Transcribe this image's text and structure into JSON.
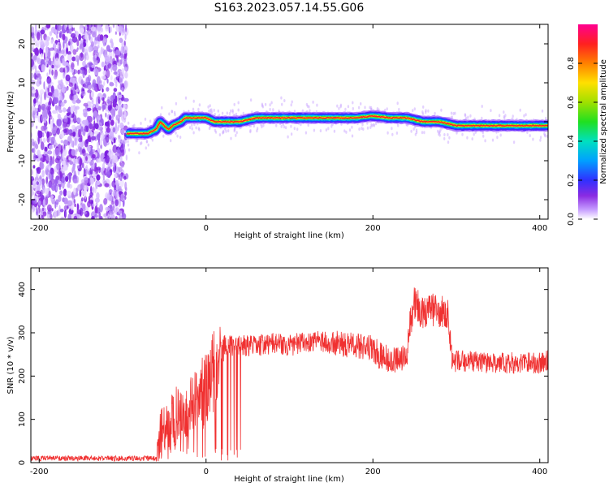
{
  "title": "S163.2023.057.14.55.G06",
  "colors": {
    "snr_line": "#f03030",
    "spectrum_noise": "#8a2be2",
    "axis": "#000000"
  },
  "colorbar": {
    "label": "Normalized spectral amplitude",
    "ticks": [
      "0.0",
      "0.2",
      "0.4",
      "0.6",
      "0.8"
    ],
    "tick_values": [
      0.0,
      0.2,
      0.4,
      0.6,
      0.8
    ],
    "range": [
      0,
      1
    ]
  },
  "chart_data": [
    {
      "type": "heatmap",
      "xlabel": "Height of straight line (km)",
      "ylabel": "Frequency (Hz)",
      "xlim": [
        -210,
        410
      ],
      "ylim": [
        -25,
        25
      ],
      "xticks": [
        -200,
        0,
        200,
        400
      ],
      "xtick_labels": [
        "-200",
        "0",
        "200",
        "400"
      ],
      "yticks": [
        -20,
        -10,
        0,
        10,
        20
      ],
      "ytick_labels": [
        "-20",
        "-10",
        "0",
        "10",
        "20"
      ],
      "noise_region_x": [
        -210,
        -95
      ],
      "ridge": {
        "x": [
          -95,
          -85,
          -70,
          -60,
          -55,
          -50,
          -45,
          -40,
          -30,
          -25,
          -20,
          -10,
          0,
          10,
          20,
          30,
          40,
          60,
          80,
          100,
          120,
          140,
          160,
          180,
          200,
          220,
          240,
          260,
          280,
          300,
          320,
          340,
          360,
          380,
          400,
          410
        ],
        "freq": [
          -3,
          -3,
          -3,
          -2,
          0,
          -1,
          -2,
          -1,
          0,
          1,
          1,
          1,
          1,
          0,
          0,
          0,
          0,
          1,
          1,
          1,
          1,
          1,
          1,
          1,
          1.5,
          1,
          1,
          0,
          0,
          -1,
          -1,
          -1,
          -1,
          -1,
          -1,
          -1
        ]
      }
    },
    {
      "type": "line",
      "xlabel": "Height of straight line (km)",
      "ylabel": "SNR (10 * v/v)",
      "xlim": [
        -210,
        410
      ],
      "ylim": [
        0,
        450
      ],
      "xticks": [
        -200,
        0,
        200,
        400
      ],
      "xtick_labels": [
        "-200",
        "0",
        "200",
        "400"
      ],
      "yticks": [
        0,
        100,
        200,
        300,
        400
      ],
      "ytick_labels": [
        "0",
        "100",
        "200",
        "300",
        "400"
      ],
      "series": [
        {
          "x": [
            -210,
            -150,
            -100,
            -60,
            -55,
            -50,
            -40,
            -30,
            -20,
            -10,
            0,
            10,
            15,
            20,
            25,
            30,
            40,
            60,
            80,
            100,
            120,
            140,
            160,
            180,
            200,
            210,
            220,
            230,
            240,
            245,
            250,
            260,
            270,
            280,
            290,
            295,
            300,
            320,
            340,
            360,
            380,
            400,
            410
          ],
          "y": [
            10,
            10,
            10,
            10,
            60,
            80,
            100,
            120,
            130,
            150,
            170,
            220,
            250,
            265,
            270,
            270,
            270,
            270,
            275,
            270,
            280,
            280,
            275,
            270,
            265,
            245,
            245,
            235,
            240,
            330,
            370,
            345,
            355,
            345,
            350,
            230,
            235,
            235,
            230,
            230,
            230,
            230,
            235
          ],
          "noise": [
            6,
            6,
            6,
            6,
            60,
            60,
            70,
            70,
            70,
            80,
            90,
            100,
            100,
            40,
            30,
            25,
            25,
            25,
            25,
            25,
            25,
            25,
            30,
            30,
            30,
            35,
            35,
            35,
            35,
            40,
            40,
            40,
            40,
            40,
            40,
            25,
            25,
            25,
            25,
            25,
            25,
            25,
            25
          ]
        }
      ]
    }
  ]
}
